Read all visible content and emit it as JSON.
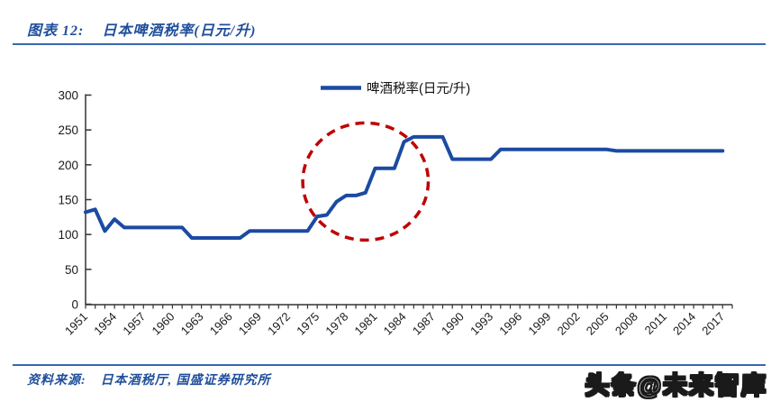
{
  "figure": {
    "label": "图表 12:",
    "title": "日本啤酒税率(日元/升)"
  },
  "footer": {
    "source_label": "资料来源:",
    "source_text": "日本酒税厅, 国盛证券研究所"
  },
  "watermark": "头条@未来智库",
  "colors": {
    "line_blue": "#1B4AA2",
    "title_blue": "#1F4E9C",
    "rule_blue": "#3A67B0",
    "circle_red": "#C00000",
    "axis_color": "#333333",
    "tick_label_color": "#1a1a1a"
  },
  "chart_data": {
    "type": "line",
    "title": "",
    "xlabel": "",
    "ylabel": "",
    "grid": false,
    "legend": [
      "啤酒税率(日元/升)"
    ],
    "legend_position": "top-center",
    "ylim": [
      0,
      300
    ],
    "yticks": [
      0,
      50,
      100,
      150,
      200,
      250,
      300
    ],
    "xtick_labels": [
      "1951",
      "1954",
      "1957",
      "1960",
      "1963",
      "1966",
      "1969",
      "1972",
      "1975",
      "1978",
      "1981",
      "1984",
      "1987",
      "1990",
      "1993",
      "1996",
      "1999",
      "2002",
      "2005",
      "2008",
      "2011",
      "2014",
      "2017"
    ],
    "x": [
      1951,
      1952,
      1953,
      1954,
      1955,
      1956,
      1957,
      1958,
      1959,
      1960,
      1961,
      1962,
      1963,
      1964,
      1965,
      1966,
      1967,
      1968,
      1969,
      1970,
      1971,
      1972,
      1973,
      1974,
      1975,
      1976,
      1977,
      1978,
      1979,
      1980,
      1981,
      1982,
      1983,
      1984,
      1985,
      1986,
      1987,
      1988,
      1989,
      1990,
      1991,
      1992,
      1993,
      1994,
      1995,
      1996,
      1997,
      1998,
      1999,
      2000,
      2001,
      2002,
      2003,
      2004,
      2005,
      2006,
      2007,
      2008,
      2009,
      2010,
      2011,
      2012,
      2013,
      2014,
      2015,
      2016,
      2017
    ],
    "series": [
      {
        "name": "啤酒税率(日元/升)",
        "values": [
          132,
          136,
          105,
          122,
          110,
          110,
          110,
          110,
          110,
          110,
          110,
          95,
          95,
          95,
          95,
          95,
          95,
          105,
          105,
          105,
          105,
          105,
          105,
          105,
          126,
          128,
          147,
          156,
          156,
          160,
          195,
          195,
          195,
          233,
          240,
          240,
          240,
          240,
          208,
          208,
          208,
          208,
          208,
          222,
          222,
          222,
          222,
          222,
          222,
          222,
          222,
          222,
          222,
          222,
          222,
          220,
          220,
          220,
          220,
          220,
          220,
          220,
          220,
          220,
          220,
          220,
          220
        ]
      }
    ],
    "annotation": {
      "shape": "dashed-ellipse",
      "color": "#C00000",
      "x_year_range": [
        1973.5,
        1986.5
      ],
      "y_value_range": [
        92,
        260
      ]
    }
  }
}
